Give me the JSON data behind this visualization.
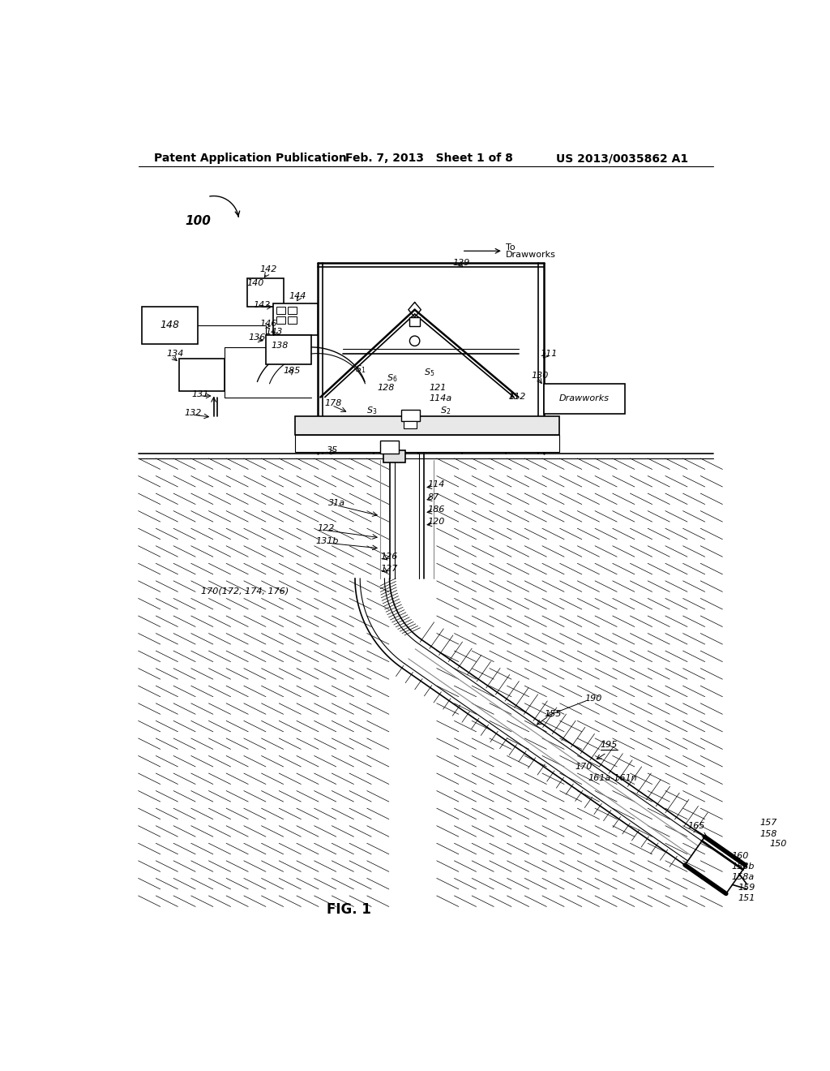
{
  "bg_color": "#ffffff",
  "line_color": "#000000",
  "title_left": "Patent Application Publication",
  "title_mid": "Feb. 7, 2013   Sheet 1 of 8",
  "title_right": "US 2013/0035862 A1",
  "fig_label": "FIG. 1"
}
